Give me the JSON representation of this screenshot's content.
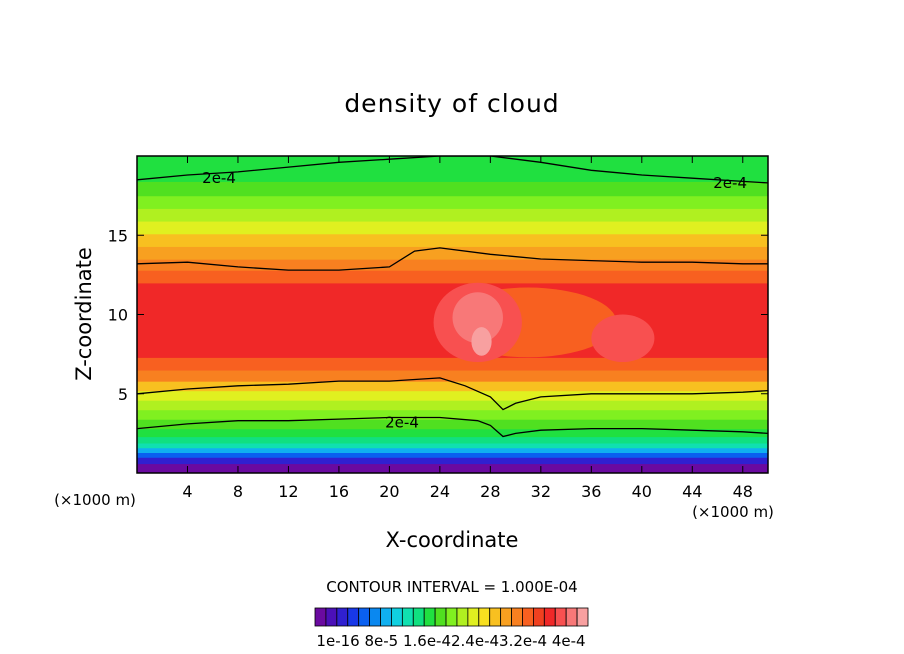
{
  "chart_data": {
    "type": "heatmap",
    "title": "density of cloud",
    "xlabel": "X-coordinate",
    "ylabel": "Z-coordinate",
    "x_unit_left": "(×1000 m)",
    "x_unit_right": "(×1000 m)",
    "xlim": [
      0,
      50
    ],
    "ylim": [
      0,
      20
    ],
    "x_ticks": [
      4,
      8,
      12,
      16,
      20,
      24,
      28,
      32,
      36,
      40,
      44,
      48
    ],
    "y_ticks": [
      5,
      10,
      15
    ],
    "contour_interval_text": "CONTOUR INTERVAL = 1.000E-04",
    "contour_labels": [
      {
        "text": "2e-4",
        "x": 6.5,
        "y": 18.6
      },
      {
        "text": "2e-4",
        "x": 47,
        "y": 18.3
      },
      {
        "text": "2e-4",
        "x": 21,
        "y": 3.2
      }
    ],
    "colorbar_labels": [
      "1e-16",
      "8e-5",
      "1.6e-4",
      "2.4e-4",
      "3.2e-4",
      "4e-4"
    ],
    "colorbar_label_text": "1e-16 8e-5 1.6e-42.4e-43.2e-4 4e-4",
    "colorbar_colors": [
      "#6a0aa0",
      "#4b10b8",
      "#3020d0",
      "#1838e8",
      "#0a60f0",
      "#0a88f0",
      "#10b0f0",
      "#10d0e0",
      "#10e0b0",
      "#10e080",
      "#20e040",
      "#50e020",
      "#80f020",
      "#b0f020",
      "#e0f020",
      "#f8e020",
      "#f8c020",
      "#f8a020",
      "#f88020",
      "#f86020",
      "#f04020",
      "#f02828",
      "#f85050",
      "#f87878",
      "#f8a0a0"
    ],
    "layers": [
      {
        "zb": 0.0,
        "zt": 0.6,
        "color": "#6a0aa0"
      },
      {
        "zb": 0.6,
        "zt": 1.0,
        "color": "#3020d0"
      },
      {
        "zb": 1.0,
        "zt": 1.3,
        "color": "#0a60f0"
      },
      {
        "zb": 1.3,
        "zt": 1.6,
        "color": "#10b0f0"
      },
      {
        "zb": 1.6,
        "zt": 1.9,
        "color": "#10e0b0"
      },
      {
        "zb": 1.9,
        "zt": 2.3,
        "color": "#10e080"
      },
      {
        "zb": 2.3,
        "zt": 2.8,
        "color": "#20e040"
      },
      {
        "zb": 2.8,
        "zt": 3.4,
        "color": "#50e020"
      },
      {
        "zb": 3.4,
        "zt": 4.0,
        "color": "#80f020"
      },
      {
        "zb": 4.0,
        "zt": 4.6,
        "color": "#b0f020"
      },
      {
        "zb": 4.6,
        "zt": 5.2,
        "color": "#e0f020"
      },
      {
        "zb": 5.2,
        "zt": 5.8,
        "color": "#f8c020"
      },
      {
        "zb": 5.8,
        "zt": 6.5,
        "color": "#f88020"
      },
      {
        "zb": 6.5,
        "zt": 7.3,
        "color": "#f86020"
      },
      {
        "zb": 7.3,
        "zt": 12.0,
        "color": "#f02828"
      },
      {
        "zb": 12.0,
        "zt": 12.8,
        "color": "#f86020"
      },
      {
        "zb": 12.8,
        "zt": 13.5,
        "color": "#f88020"
      },
      {
        "zb": 13.5,
        "zt": 14.3,
        "color": "#f8a020"
      },
      {
        "zb": 14.3,
        "zt": 15.1,
        "color": "#f8c020"
      },
      {
        "zb": 15.1,
        "zt": 15.9,
        "color": "#e0f020"
      },
      {
        "zb": 15.9,
        "zt": 16.7,
        "color": "#b0f020"
      },
      {
        "zb": 16.7,
        "zt": 17.5,
        "color": "#80f020"
      },
      {
        "zb": 17.5,
        "zt": 18.4,
        "color": "#50e020"
      },
      {
        "zb": 18.4,
        "zt": 20.0,
        "color": "#20e040"
      }
    ],
    "blobs": [
      {
        "x": 31,
        "z": 9.5,
        "rx": 7,
        "rz": 2.2,
        "color": "#f86020"
      },
      {
        "x": 27,
        "z": 9.5,
        "rx": 3.5,
        "rz": 2.5,
        "color": "#f85050"
      },
      {
        "x": 38.5,
        "z": 8.5,
        "rx": 2.5,
        "rz": 1.5,
        "color": "#f85050"
      },
      {
        "x": 27,
        "z": 9.8,
        "rx": 2,
        "rz": 1.6,
        "color": "#f87878"
      },
      {
        "x": 27.3,
        "z": 8.3,
        "rx": 0.8,
        "rz": 0.9,
        "color": "#f8a0a0"
      }
    ],
    "contours": [
      {
        "x": [
          0,
          4,
          8,
          12,
          16,
          20,
          24,
          28,
          32,
          36,
          40,
          44,
          48,
          50
        ],
        "z": [
          18.5,
          18.8,
          19.0,
          19.3,
          19.6,
          19.8,
          20.0,
          20.0,
          19.6,
          19.1,
          18.8,
          18.6,
          18.4,
          18.3
        ]
      },
      {
        "x": [
          0,
          4,
          8,
          12,
          16,
          20,
          22,
          24,
          28,
          32,
          36,
          40,
          44,
          48,
          50
        ],
        "z": [
          13.2,
          13.3,
          13.0,
          12.8,
          12.8,
          13.0,
          14.0,
          14.2,
          13.8,
          13.5,
          13.4,
          13.3,
          13.3,
          13.2,
          13.2
        ]
      },
      {
        "x": [
          0,
          4,
          8,
          12,
          16,
          20,
          24,
          26,
          28,
          29,
          30,
          32,
          36,
          40,
          44,
          48,
          50
        ],
        "z": [
          5.0,
          5.3,
          5.5,
          5.6,
          5.8,
          5.8,
          6.0,
          5.5,
          4.8,
          4.0,
          4.4,
          4.8,
          5.0,
          5.0,
          5.0,
          5.1,
          5.2
        ]
      },
      {
        "x": [
          0,
          4,
          8,
          12,
          16,
          20,
          24,
          27,
          28,
          29,
          30,
          32,
          36,
          40,
          44,
          48,
          50
        ],
        "z": [
          2.8,
          3.1,
          3.3,
          3.3,
          3.4,
          3.5,
          3.5,
          3.3,
          3.0,
          2.3,
          2.5,
          2.7,
          2.8,
          2.8,
          2.7,
          2.6,
          2.5
        ]
      }
    ]
  }
}
